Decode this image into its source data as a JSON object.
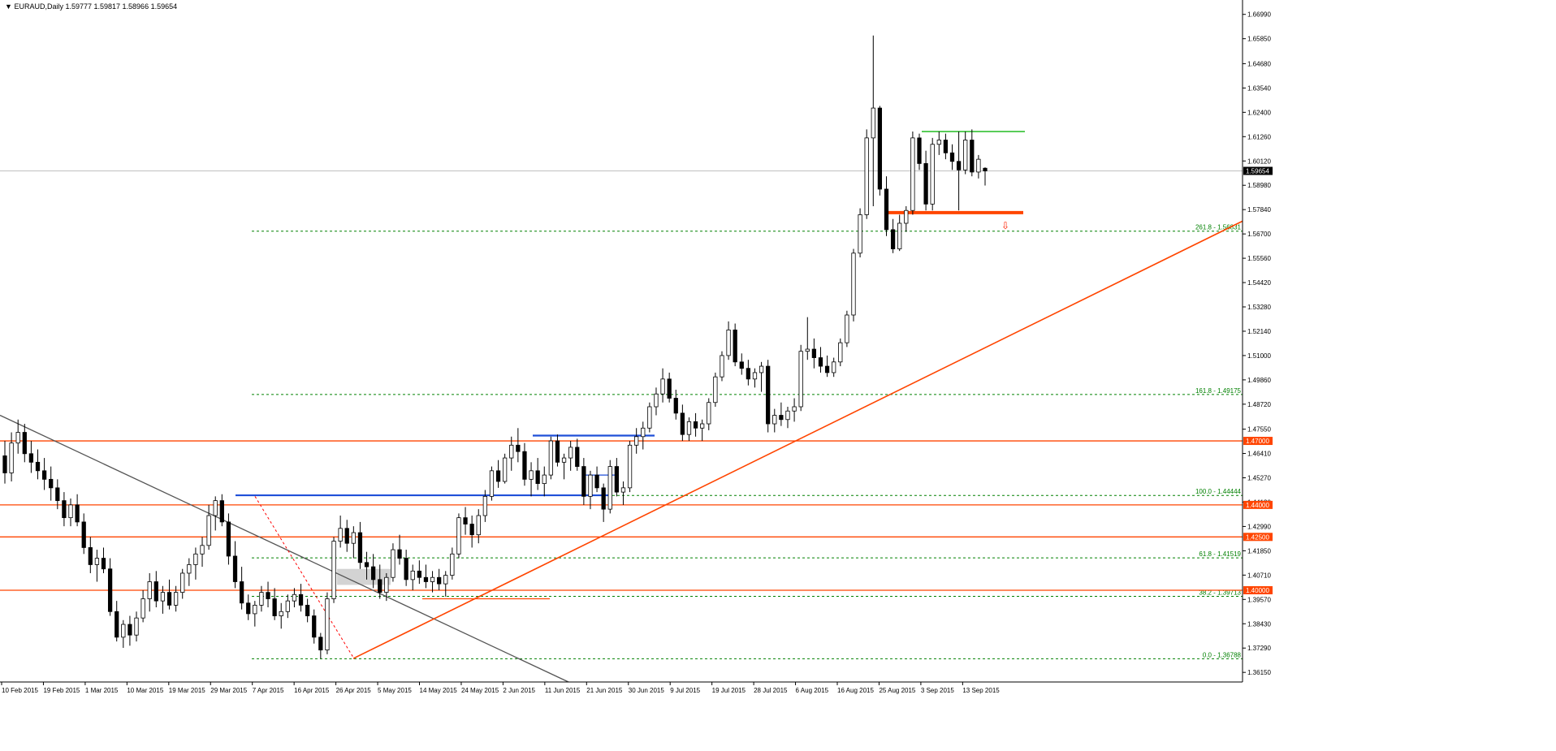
{
  "header": {
    "symbol": "EURAUD,Daily",
    "ohlc": "1.59777 1.59817 1.58966 1.59654"
  },
  "colors": {
    "background": "#ffffff",
    "axis": "#000000",
    "candle_up": "#ffffff",
    "candle_down": "#000000",
    "support_resistance": "#ff4500",
    "fib_level": "#008000",
    "channel_blue": "#1f4fd8",
    "range_green": "#22bb22",
    "downtrend": "#555555",
    "current_price_bg": "#000000"
  },
  "chart_data": {
    "type": "candlestick",
    "symbol": "EURAUD",
    "timeframe": "Daily",
    "y_ticks": [
      "1.66990",
      "1.65850",
      "1.64680",
      "1.63540",
      "1.62400",
      "1.61260",
      "1.60120",
      "1.58980",
      "1.57840",
      "1.56700",
      "1.55560",
      "1.54420",
      "1.53280",
      "1.52140",
      "1.51000",
      "1.49860",
      "1.48720",
      "1.47550",
      "1.46410",
      "1.45270",
      "1.44130",
      "1.42990",
      "1.41850",
      "1.40710",
      "1.39570",
      "1.38430",
      "1.37290",
      "1.36150"
    ],
    "x_ticks": [
      "10 Feb 2015",
      "19 Feb 2015",
      "1 Mar 2015",
      "10 Mar 2015",
      "19 Mar 2015",
      "29 Mar 2015",
      "7 Apr 2015",
      "16 Apr 2015",
      "26 Apr 2015",
      "5 May 2015",
      "14 May 2015",
      "24 May 2015",
      "2 Jun 2015",
      "11 Jun 2015",
      "21 Jun 2015",
      "30 Jun 2015",
      "9 Jul 2015",
      "19 Jul 2015",
      "28 Jul 2015",
      "6 Aug 2015",
      "16 Aug 2015",
      "25 Aug 2015",
      "3 Sep 2015",
      "13 Sep 2015"
    ],
    "ylim": [
      1.357,
      1.6755
    ],
    "current_price": "1.59654",
    "horizontal_levels": [
      {
        "label": "1.47000",
        "value": 1.47
      },
      {
        "label": "1.44000",
        "value": 1.44
      },
      {
        "label": "1.42500",
        "value": 1.425
      },
      {
        "label": "1.40000",
        "value": 1.4
      }
    ],
    "fib_levels": [
      {
        "label": "261.8 - 1.56831",
        "value": 1.56831
      },
      {
        "label": "161.8 - 1.49175",
        "value": 1.49175
      },
      {
        "label": "100.0 - 1.44444",
        "value": 1.44444
      },
      {
        "label": "61.8 - 1.41519",
        "value": 1.41519
      },
      {
        "label": "38.2 - 1.39713",
        "value": 1.39713
      },
      {
        "label": "0.0 - 1.36788",
        "value": 1.36788
      }
    ],
    "candles": [
      [
        1.463,
        1.47,
        1.45,
        1.455
      ],
      [
        1.455,
        1.474,
        1.451,
        1.469
      ],
      [
        1.469,
        1.48,
        1.464,
        1.474
      ],
      [
        1.474,
        1.478,
        1.46,
        1.464
      ],
      [
        1.464,
        1.47,
        1.455,
        1.46
      ],
      [
        1.46,
        1.466,
        1.452,
        1.456
      ],
      [
        1.456,
        1.462,
        1.447,
        1.452
      ],
      [
        1.452,
        1.458,
        1.442,
        1.448
      ],
      [
        1.448,
        1.452,
        1.438,
        1.442
      ],
      [
        1.442,
        1.446,
        1.43,
        1.434
      ],
      [
        1.434,
        1.443,
        1.43,
        1.44
      ],
      [
        1.44,
        1.445,
        1.43,
        1.432
      ],
      [
        1.432,
        1.436,
        1.417,
        1.42
      ],
      [
        1.42,
        1.425,
        1.408,
        1.412
      ],
      [
        1.412,
        1.419,
        1.404,
        1.415
      ],
      [
        1.415,
        1.42,
        1.408,
        1.41
      ],
      [
        1.41,
        1.415,
        1.388,
        1.39
      ],
      [
        1.39,
        1.395,
        1.376,
        1.378
      ],
      [
        1.378,
        1.386,
        1.373,
        1.384
      ],
      [
        1.384,
        1.388,
        1.374,
        1.379
      ],
      [
        1.379,
        1.39,
        1.376,
        1.387
      ],
      [
        1.387,
        1.4,
        1.385,
        1.396
      ],
      [
        1.396,
        1.408,
        1.39,
        1.404
      ],
      [
        1.404,
        1.409,
        1.392,
        1.395
      ],
      [
        1.395,
        1.402,
        1.389,
        1.399
      ],
      [
        1.399,
        1.405,
        1.391,
        1.393
      ],
      [
        1.393,
        1.402,
        1.39,
        1.399
      ],
      [
        1.399,
        1.41,
        1.396,
        1.408
      ],
      [
        1.408,
        1.415,
        1.402,
        1.412
      ],
      [
        1.412,
        1.42,
        1.405,
        1.417
      ],
      [
        1.417,
        1.425,
        1.411,
        1.421
      ],
      [
        1.421,
        1.44,
        1.419,
        1.435
      ],
      [
        1.435,
        1.444,
        1.428,
        1.442
      ],
      [
        1.442,
        1.445,
        1.43,
        1.432
      ],
      [
        1.432,
        1.436,
        1.412,
        1.416
      ],
      [
        1.416,
        1.423,
        1.401,
        1.404
      ],
      [
        1.404,
        1.411,
        1.391,
        1.394
      ],
      [
        1.394,
        1.398,
        1.386,
        1.389
      ],
      [
        1.389,
        1.395,
        1.383,
        1.393
      ],
      [
        1.393,
        1.402,
        1.39,
        1.399
      ],
      [
        1.399,
        1.404,
        1.392,
        1.396
      ],
      [
        1.396,
        1.401,
        1.386,
        1.388
      ],
      [
        1.388,
        1.394,
        1.382,
        1.39
      ],
      [
        1.39,
        1.398,
        1.387,
        1.395
      ],
      [
        1.395,
        1.401,
        1.392,
        1.398
      ],
      [
        1.398,
        1.403,
        1.39,
        1.393
      ],
      [
        1.393,
        1.396,
        1.385,
        1.388
      ],
      [
        1.388,
        1.391,
        1.375,
        1.378
      ],
      [
        1.378,
        1.38,
        1.3679,
        1.372
      ],
      [
        1.372,
        1.399,
        1.37,
        1.396
      ],
      [
        1.396,
        1.425,
        1.394,
        1.423
      ],
      [
        1.423,
        1.435,
        1.42,
        1.429
      ],
      [
        1.429,
        1.433,
        1.418,
        1.422
      ],
      [
        1.422,
        1.43,
        1.415,
        1.427
      ],
      [
        1.427,
        1.432,
        1.41,
        1.413
      ],
      [
        1.413,
        1.418,
        1.405,
        1.411
      ],
      [
        1.411,
        1.417,
        1.401,
        1.405
      ],
      [
        1.405,
        1.412,
        1.396,
        1.399
      ],
      [
        1.399,
        1.408,
        1.395,
        1.406
      ],
      [
        1.406,
        1.422,
        1.404,
        1.419
      ],
      [
        1.419,
        1.426,
        1.412,
        1.415
      ],
      [
        1.415,
        1.419,
        1.402,
        1.405
      ],
      [
        1.405,
        1.412,
        1.4,
        1.409
      ],
      [
        1.409,
        1.414,
        1.403,
        1.406
      ],
      [
        1.406,
        1.412,
        1.401,
        1.404
      ],
      [
        1.404,
        1.409,
        1.399,
        1.406
      ],
      [
        1.406,
        1.41,
        1.4,
        1.403
      ],
      [
        1.403,
        1.409,
        1.397,
        1.407
      ],
      [
        1.407,
        1.42,
        1.405,
        1.417
      ],
      [
        1.417,
        1.436,
        1.415,
        1.434
      ],
      [
        1.434,
        1.439,
        1.426,
        1.431
      ],
      [
        1.431,
        1.435,
        1.42,
        1.426
      ],
      [
        1.426,
        1.438,
        1.422,
        1.435
      ],
      [
        1.435,
        1.447,
        1.432,
        1.444
      ],
      [
        1.444,
        1.458,
        1.442,
        1.456
      ],
      [
        1.456,
        1.461,
        1.448,
        1.451
      ],
      [
        1.451,
        1.464,
        1.45,
        1.462
      ],
      [
        1.462,
        1.472,
        1.456,
        1.468
      ],
      [
        1.468,
        1.476,
        1.46,
        1.465
      ],
      [
        1.465,
        1.469,
        1.449,
        1.452
      ],
      [
        1.452,
        1.46,
        1.444,
        1.456
      ],
      [
        1.456,
        1.462,
        1.447,
        1.45
      ],
      [
        1.45,
        1.458,
        1.444,
        1.454
      ],
      [
        1.454,
        1.472,
        1.452,
        1.47
      ],
      [
        1.47,
        1.473,
        1.458,
        1.46
      ],
      [
        1.46,
        1.464,
        1.452,
        1.462
      ],
      [
        1.462,
        1.47,
        1.456,
        1.467
      ],
      [
        1.467,
        1.471,
        1.456,
        1.458
      ],
      [
        1.458,
        1.462,
        1.44,
        1.444
      ],
      [
        1.444,
        1.456,
        1.438,
        1.454
      ],
      [
        1.454,
        1.458,
        1.446,
        1.448
      ],
      [
        1.448,
        1.45,
        1.432,
        1.438
      ],
      [
        1.438,
        1.461,
        1.436,
        1.458
      ],
      [
        1.458,
        1.462,
        1.444,
        1.446
      ],
      [
        1.446,
        1.451,
        1.44,
        1.448
      ],
      [
        1.448,
        1.47,
        1.446,
        1.468
      ],
      [
        1.468,
        1.476,
        1.464,
        1.472
      ],
      [
        1.472,
        1.479,
        1.466,
        1.476
      ],
      [
        1.476,
        1.488,
        1.474,
        1.486
      ],
      [
        1.486,
        1.495,
        1.482,
        1.492
      ],
      [
        1.492,
        1.504,
        1.488,
        1.499
      ],
      [
        1.499,
        1.502,
        1.488,
        1.49
      ],
      [
        1.49,
        1.494,
        1.48,
        1.483
      ],
      [
        1.483,
        1.487,
        1.47,
        1.473
      ],
      [
        1.473,
        1.481,
        1.47,
        1.479
      ],
      [
        1.479,
        1.483,
        1.472,
        1.476
      ],
      [
        1.476,
        1.48,
        1.47,
        1.478
      ],
      [
        1.478,
        1.49,
        1.475,
        1.488
      ],
      [
        1.488,
        1.502,
        1.486,
        1.5
      ],
      [
        1.5,
        1.512,
        1.498,
        1.51
      ],
      [
        1.51,
        1.526,
        1.508,
        1.522
      ],
      [
        1.522,
        1.525,
        1.505,
        1.507
      ],
      [
        1.507,
        1.511,
        1.501,
        1.504
      ],
      [
        1.504,
        1.508,
        1.496,
        1.499
      ],
      [
        1.499,
        1.504,
        1.495,
        1.502
      ],
      [
        1.502,
        1.507,
        1.493,
        1.505
      ],
      [
        1.505,
        1.508,
        1.474,
        1.478
      ],
      [
        1.478,
        1.485,
        1.474,
        1.482
      ],
      [
        1.482,
        1.488,
        1.477,
        1.48
      ],
      [
        1.48,
        1.486,
        1.476,
        1.484
      ],
      [
        1.484,
        1.49,
        1.479,
        1.486
      ],
      [
        1.486,
        1.515,
        1.484,
        1.512
      ],
      [
        1.512,
        1.528,
        1.508,
        1.513
      ],
      [
        1.513,
        1.518,
        1.504,
        1.509
      ],
      [
        1.509,
        1.514,
        1.502,
        1.505
      ],
      [
        1.505,
        1.51,
        1.5,
        1.502
      ],
      [
        1.502,
        1.509,
        1.5,
        1.507
      ],
      [
        1.507,
        1.518,
        1.505,
        1.516
      ],
      [
        1.516,
        1.531,
        1.514,
        1.529
      ],
      [
        1.529,
        1.56,
        1.526,
        1.558
      ],
      [
        1.558,
        1.579,
        1.556,
        1.576
      ],
      [
        1.576,
        1.616,
        1.574,
        1.612
      ],
      [
        1.612,
        1.66,
        1.58,
        1.626
      ],
      [
        1.626,
        1.627,
        1.585,
        1.588
      ],
      [
        1.588,
        1.594,
        1.566,
        1.569
      ],
      [
        1.569,
        1.574,
        1.558,
        1.56
      ],
      [
        1.56,
        1.576,
        1.559,
        1.572
      ],
      [
        1.572,
        1.58,
        1.568,
        1.578
      ],
      [
        1.578,
        1.615,
        1.576,
        1.612
      ],
      [
        1.612,
        1.614,
        1.597,
        1.6
      ],
      [
        1.6,
        1.606,
        1.578,
        1.581
      ],
      [
        1.581,
        1.612,
        1.578,
        1.609
      ],
      [
        1.609,
        1.615,
        1.604,
        1.611
      ],
      [
        1.611,
        1.614,
        1.602,
        1.605
      ],
      [
        1.605,
        1.609,
        1.597,
        1.601
      ],
      [
        1.601,
        1.615,
        1.578,
        1.597
      ],
      [
        1.597,
        1.615,
        1.595,
        1.611
      ],
      [
        1.611,
        1.616,
        1.594,
        1.596
      ],
      [
        1.596,
        1.604,
        1.593,
        1.602
      ],
      [
        1.5978,
        1.5982,
        1.5897,
        1.5965
      ]
    ],
    "annotations": {
      "downtrend_line": {
        "start_value": 1.482,
        "end_value": 1.357
      },
      "uptrend_line": {
        "start_value": 1.368,
        "end_value": 1.573
      },
      "red_dashed_line": {
        "start_value": 1.444,
        "end_value": 1.3679
      },
      "short_red_line": {
        "value": 1.396
      },
      "blue_top_line": {
        "value": 1.4725
      },
      "blue_mid_line": {
        "value": 1.454
      },
      "blue_bottom_line": {
        "value": 1.4445
      },
      "green_resistance": {
        "value": 1.615
      },
      "thick_support": {
        "value": 1.577
      }
    }
  }
}
